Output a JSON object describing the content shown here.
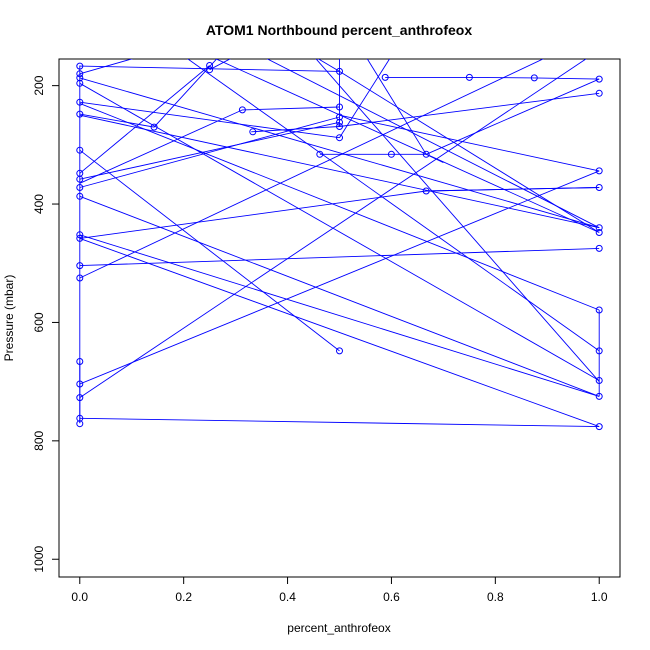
{
  "chart_data": {
    "type": "line",
    "title": "ATOM1 Northbound percent_anthrofeox",
    "xlabel": "percent_anthrofeox",
    "ylabel": "Pressure (mbar)",
    "xlim": [
      -0.04,
      1.04
    ],
    "ylim": [
      1030,
      155
    ],
    "y_reversed": true,
    "x_ticks": [
      0.0,
      0.2,
      0.4,
      0.6,
      0.8,
      1.0
    ],
    "x_tick_labels": [
      "0.0",
      "0.2",
      "0.4",
      "0.6",
      "0.8",
      "1.0"
    ],
    "y_ticks": [
      200,
      400,
      600,
      800,
      1000
    ],
    "y_tick_labels": [
      "200",
      "400",
      "600",
      "800",
      "1000"
    ],
    "grid": false,
    "legend": "none",
    "color": "#0000ff",
    "markers": "open-circle",
    "series": [
      {
        "points": [
          [
            0.0,
            167
          ],
          [
            0.0,
            180
          ],
          [
            0.0,
            187
          ],
          [
            0.0,
            196
          ],
          [
            0.0,
            228
          ],
          [
            0.0,
            248
          ],
          [
            0.0,
            309
          ],
          [
            0.0,
            348
          ],
          [
            0.0,
            358
          ],
          [
            0.0,
            372
          ],
          [
            0.0,
            387
          ],
          [
            0.0,
            452
          ],
          [
            0.0,
            458
          ],
          [
            0.0,
            504
          ],
          [
            0.0,
            525
          ],
          [
            0.0,
            666
          ],
          [
            0.0,
            704
          ],
          [
            0.0,
            727
          ],
          [
            0.0,
            762
          ],
          [
            0.0,
            771
          ],
          [
            0.143,
            270
          ],
          [
            0.25,
            166
          ],
          [
            0.25,
            173
          ],
          [
            0.313,
            241
          ],
          [
            0.333,
            278
          ],
          [
            0.5,
            176
          ],
          [
            0.5,
            236
          ],
          [
            0.5,
            253
          ],
          [
            0.5,
            262
          ],
          [
            0.5,
            269
          ],
          [
            0.5,
            288
          ],
          [
            0.5,
            648
          ],
          [
            0.462,
            316
          ],
          [
            0.6,
            316
          ],
          [
            0.667,
            316
          ],
          [
            0.588,
            186
          ],
          [
            0.75,
            186
          ],
          [
            0.875,
            187
          ],
          [
            0.667,
            378
          ],
          [
            1.0,
            189
          ],
          [
            1.0,
            213
          ],
          [
            1.0,
            344
          ],
          [
            1.0,
            372
          ],
          [
            1.0,
            440
          ],
          [
            1.0,
            448
          ],
          [
            1.0,
            475
          ],
          [
            1.0,
            579
          ],
          [
            1.0,
            648
          ],
          [
            1.0,
            698
          ],
          [
            1.0,
            725
          ],
          [
            1.0,
            776
          ]
        ],
        "segments": [
          [
            [
              0.0,
              770
            ],
            [
              0.0,
              166
            ]
          ],
          [
            [
              0.0,
              762
            ],
            [
              1.0,
              776
            ]
          ],
          [
            [
              0.0,
              704
            ],
            [
              1.0,
              344
            ]
          ],
          [
            [
              0.0,
              727
            ],
            [
              1.0,
              140
            ]
          ],
          [
            [
              0.0,
              666
            ],
            [
              0.0,
              770
            ]
          ],
          [
            [
              0.0,
              525
            ],
            [
              1.0,
              110
            ]
          ],
          [
            [
              0.0,
              504
            ],
            [
              1.0,
              475
            ]
          ],
          [
            [
              0.0,
              458
            ],
            [
              1.0,
              776
            ]
          ],
          [
            [
              0.0,
              452
            ],
            [
              1.0,
              725
            ]
          ],
          [
            [
              0.0,
              458
            ],
            [
              0.667,
              378
            ],
            [
              1.0,
              372
            ]
          ],
          [
            [
              0.0,
              387
            ],
            [
              1.0,
              725
            ]
          ],
          [
            [
              0.0,
              372
            ],
            [
              0.5,
              253
            ]
          ],
          [
            [
              0.0,
              358
            ],
            [
              0.5,
              262
            ]
          ],
          [
            [
              0.0,
              348
            ],
            [
              0.25,
              166
            ]
          ],
          [
            [
              0.0,
              309
            ],
            [
              0.5,
              648
            ]
          ],
          [
            [
              0.0,
              248
            ],
            [
              0.143,
              270
            ],
            [
              0.3,
              120
            ]
          ],
          [
            [
              0.0,
              228
            ],
            [
              0.5,
              288
            ]
          ],
          [
            [
              0.0,
              196
            ],
            [
              1.0,
              698
            ]
          ],
          [
            [
              0.0,
              187
            ],
            [
              1.0,
              440
            ]
          ],
          [
            [
              0.0,
              180
            ],
            [
              0.12,
              150
            ]
          ],
          [
            [
              0.0,
              167
            ],
            [
              0.5,
              176
            ]
          ],
          [
            [
              0.0,
              230
            ],
            [
              1.0,
              579
            ]
          ],
          [
            [
              0.0,
              365
            ],
            [
              0.313,
              241
            ],
            [
              0.5,
              236
            ]
          ],
          [
            [
              0.0,
              250
            ],
            [
              1.0,
              440
            ]
          ],
          [
            [
              0.2,
              150
            ],
            [
              1.0,
              648
            ]
          ],
          [
            [
              0.25,
              173
            ],
            [
              0.3,
              150
            ]
          ],
          [
            [
              0.25,
              150
            ],
            [
              1.0,
              448
            ]
          ],
          [
            [
              0.33,
              278
            ],
            [
              0.5,
              269
            ]
          ],
          [
            [
              0.5,
              269
            ],
            [
              0.5,
              150
            ]
          ],
          [
            [
              0.5,
              176
            ],
            [
              1.0,
              448
            ]
          ],
          [
            [
              0.462,
              316
            ],
            [
              0.6,
              316
            ],
            [
              0.667,
              316
            ],
            [
              0.7,
              330
            ]
          ],
          [
            [
              0.588,
              186
            ],
            [
              0.75,
              186
            ],
            [
              0.875,
              187
            ]
          ],
          [
            [
              0.875,
              187
            ],
            [
              1.0,
              189
            ]
          ],
          [
            [
              0.5,
              269
            ],
            [
              1.0,
              213
            ]
          ],
          [
            [
              0.5,
              288
            ],
            [
              0.6,
              150
            ]
          ],
          [
            [
              0.35,
              150
            ],
            [
              1.0,
              440
            ]
          ],
          [
            [
              0.5,
              250
            ],
            [
              1.0,
              344
            ]
          ],
          [
            [
              0.45,
              150
            ],
            [
              1.0,
              700
            ]
          ],
          [
            [
              1.0,
              579
            ],
            [
              1.0,
              725
            ]
          ],
          [
            [
              1.0,
              372
            ],
            [
              0.667,
              378
            ]
          ],
          [
            [
              0.55,
              150
            ],
            [
              0.667,
              316
            ]
          ],
          [
            [
              0.667,
              316
            ],
            [
              1.0,
              189
            ]
          ],
          [
            [
              0.5,
              176
            ],
            [
              0.45,
              150
            ]
          ]
        ]
      }
    ]
  }
}
